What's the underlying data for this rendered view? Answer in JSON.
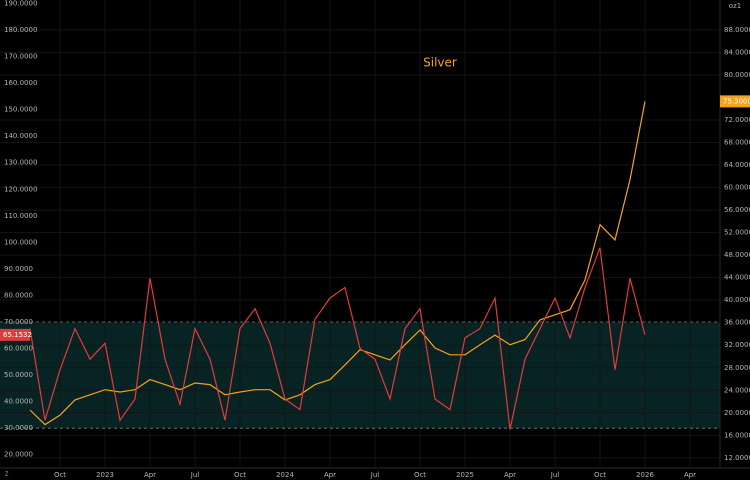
{
  "chart_data": {
    "type": "line",
    "unit_label": "oz1",
    "corner_label": "Z",
    "x": [
      "2022-08",
      "2022-09",
      "2022-10",
      "2022-11",
      "2022-12",
      "2023-01",
      "2023-02",
      "2023-03",
      "2023-04",
      "2023-05",
      "2023-06",
      "2023-07",
      "2023-08",
      "2023-09",
      "2023-10",
      "2023-11",
      "2023-12",
      "2024-01",
      "2024-02",
      "2024-03",
      "2024-04",
      "2024-05",
      "2024-06",
      "2024-07",
      "2024-08",
      "2024-09",
      "2024-10",
      "2024-11",
      "2024-12",
      "2025-01",
      "2025-02",
      "2025-03",
      "2025-04",
      "2025-05",
      "2025-06",
      "2025-07",
      "2025-08",
      "2025-09",
      "2025-10",
      "2025-11",
      "2025-12",
      "2026-01"
    ],
    "xlim": [
      "2022-06",
      "2026-06"
    ],
    "xticks": [
      {
        "value": "2022-10",
        "label": "Oct"
      },
      {
        "value": "2023-01",
        "label": "2023"
      },
      {
        "value": "2023-04",
        "label": "Apr"
      },
      {
        "value": "2023-07",
        "label": "Jul"
      },
      {
        "value": "2023-10",
        "label": "Oct"
      },
      {
        "value": "2024-01",
        "label": "2024"
      },
      {
        "value": "2024-04",
        "label": "Apr"
      },
      {
        "value": "2024-07",
        "label": "Jul"
      },
      {
        "value": "2024-10",
        "label": "Oct"
      },
      {
        "value": "2025-01",
        "label": "2025"
      },
      {
        "value": "2025-04",
        "label": "Apr"
      },
      {
        "value": "2025-07",
        "label": "Jul"
      },
      {
        "value": "2025-10",
        "label": "Oct"
      },
      {
        "value": "2026-01",
        "label": "2026"
      },
      {
        "value": "2026-04",
        "label": "Apr"
      }
    ],
    "ylim": [
      15,
      191.3
    ],
    "yticks": [
      {
        "value": 20,
        "label": "20.0000"
      },
      {
        "value": 30,
        "label": "30.0000"
      },
      {
        "value": 40,
        "label": "40.0000"
      },
      {
        "value": 50,
        "label": "50.0000"
      },
      {
        "value": 60,
        "label": "60.0000"
      },
      {
        "value": 70,
        "label": "70.0000"
      },
      {
        "value": 80,
        "label": "80.0000"
      },
      {
        "value": 90,
        "label": "90.0000"
      },
      {
        "value": 100,
        "label": "100.0000"
      },
      {
        "value": 110,
        "label": "110.0000"
      },
      {
        "value": 120,
        "label": "120.0000"
      },
      {
        "value": 130,
        "label": "130.0000"
      },
      {
        "value": 140,
        "label": "140.0000"
      },
      {
        "value": 150,
        "label": "150.0000"
      },
      {
        "value": 160,
        "label": "160.0000"
      },
      {
        "value": 170,
        "label": "170.0000"
      },
      {
        "value": 180,
        "label": "180.0000"
      },
      {
        "value": 190,
        "label": "190.0000"
      }
    ],
    "y2lim": [
      10.2,
      93.3
    ],
    "y2ticks": [
      {
        "value": 12,
        "label": "12.0000"
      },
      {
        "value": 16,
        "label": "16.0000"
      },
      {
        "value": 20,
        "label": "20.0000"
      },
      {
        "value": 24,
        "label": "24.0000"
      },
      {
        "value": 28,
        "label": "28.0000"
      },
      {
        "value": 32,
        "label": "32.0000"
      },
      {
        "value": 36,
        "label": "36.0000"
      },
      {
        "value": 40,
        "label": "40.0000"
      },
      {
        "value": 44,
        "label": "44.0000"
      },
      {
        "value": 48,
        "label": "48.0000"
      },
      {
        "value": 52,
        "label": "52.0000"
      },
      {
        "value": 56,
        "label": "56.0000"
      },
      {
        "value": 60,
        "label": "60.0000"
      },
      {
        "value": 64,
        "label": "64.0000"
      },
      {
        "value": 68,
        "label": "68.0000"
      },
      {
        "value": 72,
        "label": "72.0000"
      },
      {
        "value": 80,
        "label": "80.0000"
      },
      {
        "value": 84,
        "label": "84.0000"
      },
      {
        "value": 88,
        "label": "88.0000"
      }
    ],
    "band": [
      30,
      70
    ],
    "band_color": "#0b3a3a",
    "grid": true,
    "series": [
      {
        "name": "Silver",
        "color": "#f7a21b",
        "axis": "y2",
        "values": [
          20.5,
          17.9,
          19.6,
          22.3,
          23.2,
          24.1,
          23.7,
          24.1,
          25.9,
          25.0,
          24.1,
          25.3,
          25.0,
          23.2,
          23.7,
          24.1,
          24.1,
          22.3,
          23.2,
          25.0,
          25.9,
          28.5,
          31.2,
          30.3,
          29.4,
          32.1,
          34.7,
          31.5,
          30.3,
          30.3,
          32.1,
          33.8,
          32.1,
          33.0,
          36.5,
          37.4,
          38.3,
          43.6,
          53.4,
          50.7,
          61.4,
          75.3
        ],
        "value_labels": [
          null,
          null,
          null,
          null,
          null,
          null,
          null,
          null,
          null,
          null,
          null,
          null,
          null,
          null,
          null,
          null,
          null,
          null,
          null,
          null,
          null,
          null,
          null,
          null,
          null,
          null,
          null,
          null,
          null,
          null,
          null,
          null,
          null,
          null,
          null,
          null,
          null,
          null,
          null,
          null,
          null,
          "75.3000"
        ]
      },
      {
        "color": "#e03c3c",
        "axis": "y",
        "values": [
          67.5,
          33,
          52,
          67.5,
          56,
          62,
          33,
          41,
          86.5,
          56,
          39,
          67.5,
          56,
          33,
          67.5,
          75,
          62,
          41,
          37,
          71,
          79,
          83,
          60,
          56,
          41,
          67.5,
          75,
          41,
          37,
          64,
          67.5,
          79,
          29.5,
          56,
          67.5,
          79,
          64,
          83,
          98,
          52,
          86.5,
          65.1532
        ],
        "value_labels": [
          null,
          null,
          null,
          null,
          null,
          null,
          null,
          null,
          null,
          null,
          null,
          null,
          null,
          null,
          null,
          null,
          null,
          null,
          null,
          null,
          null,
          null,
          null,
          null,
          null,
          null,
          null,
          null,
          null,
          null,
          null,
          null,
          null,
          null,
          null,
          null,
          null,
          null,
          null,
          null,
          null,
          "65.1532"
        ]
      }
    ]
  }
}
